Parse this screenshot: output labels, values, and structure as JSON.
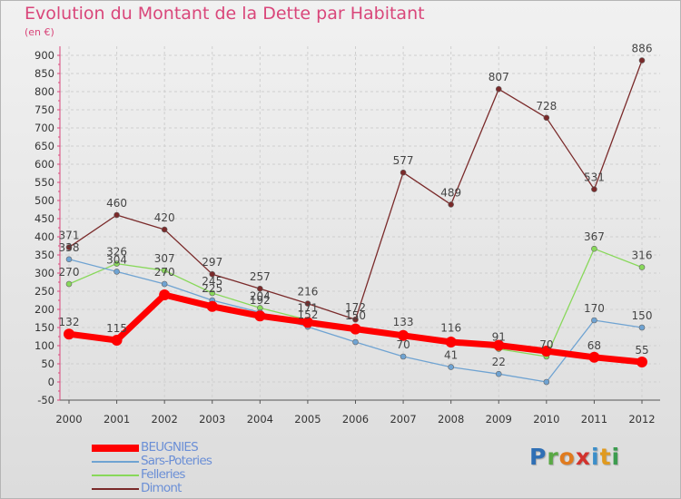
{
  "title": "Evolution du Montant de la Dette par Habitant",
  "subtitle": "(en €)",
  "logo": {
    "chars": [
      "P",
      "r",
      "o",
      "x",
      "i",
      "t",
      "i"
    ],
    "colors": [
      "#2f6fb5",
      "#5aa845",
      "#e07b1f",
      "#d2332e",
      "#3c8ec9",
      "#e09a1f",
      "#3c9c4f"
    ]
  },
  "chart_data": {
    "type": "line",
    "x": [
      "2000",
      "2001",
      "2002",
      "2003",
      "2004",
      "2005",
      "2006",
      "2007",
      "2008",
      "2009",
      "2010",
      "2011",
      "2012"
    ],
    "ylim": [
      -50,
      900
    ],
    "yticks": [
      "-50",
      "0",
      "50",
      "100",
      "150",
      "200",
      "250",
      "300",
      "350",
      "400",
      "450",
      "500",
      "550",
      "600",
      "650",
      "700",
      "750",
      "800",
      "850",
      "900"
    ],
    "grid": true,
    "legend_position": "bottom-left",
    "series": [
      {
        "name": "BEUGNIES",
        "color": "#ff0000",
        "values": [
          132,
          115,
          240,
          208,
          182,
          164,
          146,
          128,
          110,
          101,
          85,
          68,
          55
        ],
        "labels": [
          "132",
          "115",
          "240",
          "208",
          "182",
          "164",
          "146",
          "128",
          "110",
          "101",
          "85",
          "68",
          "55"
        ],
        "labels_shown": [
          true,
          true,
          false,
          false,
          false,
          false,
          false,
          false,
          false,
          false,
          false,
          true,
          true
        ]
      },
      {
        "name": "Sars-Poteries",
        "color": "#6fa3d2",
        "values": [
          338,
          304,
          270,
          225,
          192,
          152,
          110,
          70,
          41,
          22,
          0,
          170,
          150
        ],
        "labels": [
          "338",
          "304",
          "270",
          "225",
          "192",
          "152",
          "110",
          "70",
          "41",
          "22",
          "0",
          "170",
          "150"
        ],
        "labels_shown": [
          true,
          true,
          true,
          true,
          true,
          true,
          false,
          true,
          true,
          true,
          false,
          true,
          true
        ]
      },
      {
        "name": "Felleries",
        "color": "#88d85a",
        "values": [
          270,
          326,
          307,
          245,
          204,
          171,
          150,
          133,
          116,
          91,
          70,
          367,
          316
        ],
        "labels": [
          "270",
          "326",
          "307",
          "245",
          "204",
          "171",
          "150",
          "133",
          "116",
          "91",
          "70",
          "367",
          "316"
        ],
        "labels_shown": [
          true,
          true,
          true,
          true,
          true,
          true,
          true,
          true,
          true,
          true,
          true,
          true,
          true
        ]
      },
      {
        "name": "Dimont",
        "color": "#7a2a2a",
        "values": [
          371,
          460,
          420,
          297,
          257,
          216,
          172,
          577,
          489,
          807,
          728,
          531,
          886
        ],
        "labels": [
          "371",
          "460",
          "420",
          "297",
          "257",
          "216",
          "172",
          "577",
          "489",
          "807",
          "728",
          "531",
          "886"
        ],
        "labels_shown": [
          true,
          true,
          true,
          true,
          true,
          true,
          true,
          true,
          true,
          true,
          true,
          true,
          true
        ]
      }
    ]
  }
}
